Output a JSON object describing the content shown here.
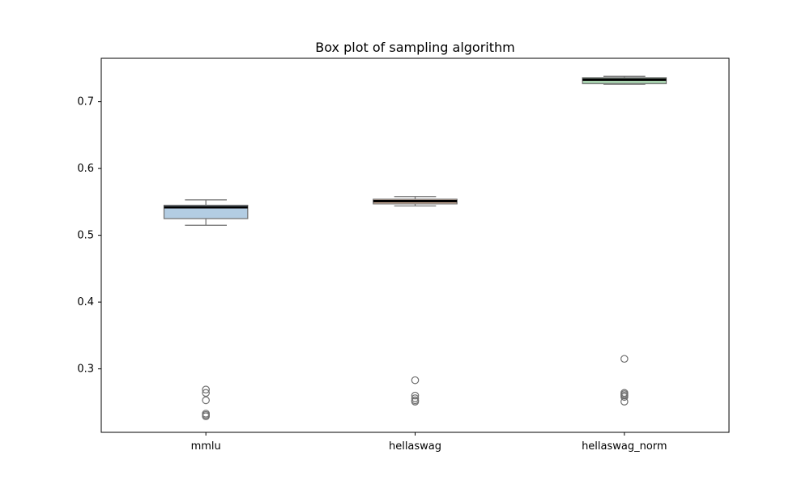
{
  "chart_data": {
    "type": "box",
    "title": "Box plot of sampling algorithm",
    "xlabel": "",
    "ylabel": "",
    "categories": [
      "mmlu",
      "hellaswag",
      "hellaswag_norm"
    ],
    "ylim": [
      0.205,
      0.765
    ],
    "yticks": [
      0.3,
      0.4,
      0.5,
      0.6,
      0.7
    ],
    "ytick_labels": [
      "0.3",
      "0.4",
      "0.5",
      "0.6",
      "0.7"
    ],
    "grid": false,
    "boxes": [
      {
        "category": "mmlu",
        "color": "#b3cde3",
        "whislo": 0.515,
        "q1": 0.525,
        "median": 0.542,
        "q3": 0.545,
        "whishi": 0.553,
        "fliers": [
          0.269,
          0.264,
          0.253,
          0.233,
          0.231,
          0.229
        ]
      },
      {
        "category": "hellaswag",
        "color": "#f2cdb4",
        "whislo": 0.544,
        "q1": 0.547,
        "median": 0.551,
        "q3": 0.554,
        "whishi": 0.558,
        "fliers": [
          0.283,
          0.26,
          0.256,
          0.253,
          0.251
        ]
      },
      {
        "category": "hellaswag_norm",
        "color": "#a9d4b0",
        "whislo": 0.726,
        "q1": 0.727,
        "median": 0.733,
        "q3": 0.736,
        "whishi": 0.738,
        "fliers": [
          0.315,
          0.264,
          0.262,
          0.26,
          0.258,
          0.251
        ]
      }
    ]
  }
}
